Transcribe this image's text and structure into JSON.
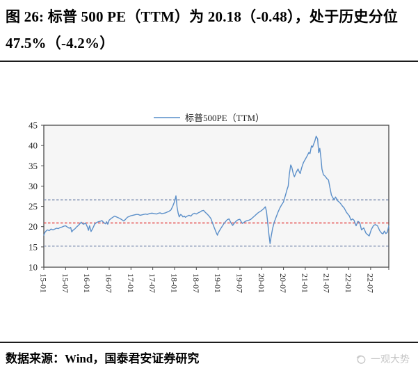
{
  "figure": {
    "title": "图 26: 标普 500 PE（TTM）为 20.18（-0.48），处于历史分位 47.5%（-4.2%）",
    "source": "数据来源：Wind，国泰君安证券研究",
    "watermark": "一观大势"
  },
  "chart_data": {
    "type": "line",
    "title": "",
    "legend": [
      "标普500PE（TTM）"
    ],
    "legend_position": "top-center",
    "legend_line_color": "#7fa9d6",
    "grid": false,
    "plot_bg": "#f6f6f6",
    "border_color": "#4a4a4a",
    "axis_text_color": "#222222",
    "ylim": [
      10,
      45
    ],
    "y_ticks": [
      10,
      15,
      20,
      25,
      30,
      35,
      40,
      45
    ],
    "x_range_months": [
      0,
      95
    ],
    "x_tick_step_months": 6,
    "x_ticks": [
      "15-01",
      "15-07",
      "16-01",
      "16-07",
      "17-01",
      "17-07",
      "18-01",
      "18-07",
      "19-01",
      "19-07",
      "20-01",
      "20-07",
      "21-01",
      "21-07",
      "22-01",
      "22-07"
    ],
    "current_value": 20.18,
    "current_change": -0.48,
    "percentile": "47.5%",
    "percentile_change": "-4.2%",
    "reference_lines": [
      {
        "name": "mean",
        "value": 20.9,
        "color": "#e23b3b"
      },
      {
        "name": "plus-1-std",
        "value": 26.6,
        "color": "#8090b2"
      },
      {
        "name": "minus-1-std",
        "value": 15.2,
        "color": "#8090b2"
      }
    ],
    "series": [
      {
        "name": "标普500PE（TTM）",
        "color": "#5b8fc9",
        "points": [
          [
            0,
            17.9
          ],
          [
            0.3,
            18.6
          ],
          [
            0.7,
            19.0
          ],
          [
            1,
            19.2
          ],
          [
            1.5,
            19.0
          ],
          [
            2,
            19.4
          ],
          [
            2.5,
            19.2
          ],
          [
            3,
            19.4
          ],
          [
            3.5,
            19.6
          ],
          [
            4,
            19.5
          ],
          [
            4.5,
            19.8
          ],
          [
            5,
            19.9
          ],
          [
            5.5,
            20.1
          ],
          [
            6,
            20.2
          ],
          [
            6.5,
            19.9
          ],
          [
            7,
            19.6
          ],
          [
            7.4,
            19.8
          ],
          [
            7.7,
            18.7
          ],
          [
            8,
            19.1
          ],
          [
            8.5,
            19.4
          ],
          [
            9,
            19.9
          ],
          [
            9.5,
            20.3
          ],
          [
            10,
            20.8
          ],
          [
            10.3,
            21.1
          ],
          [
            10.7,
            20.7
          ],
          [
            11,
            20.6
          ],
          [
            11.5,
            20.9
          ],
          [
            12,
            19.9
          ],
          [
            12.3,
            19.1
          ],
          [
            12.6,
            20.2
          ],
          [
            13,
            18.8
          ],
          [
            13.5,
            19.6
          ],
          [
            14,
            20.6
          ],
          [
            14.5,
            21.0
          ],
          [
            15,
            21.2
          ],
          [
            15.5,
            21.3
          ],
          [
            16,
            21.5
          ],
          [
            16.5,
            21.0
          ],
          [
            17,
            20.7
          ],
          [
            17.3,
            21.2
          ],
          [
            17.6,
            20.6
          ],
          [
            18,
            21.6
          ],
          [
            18.5,
            22.0
          ],
          [
            19,
            22.3
          ],
          [
            19.5,
            22.6
          ],
          [
            20,
            22.4
          ],
          [
            20.5,
            22.2
          ],
          [
            21,
            22.0
          ],
          [
            21.5,
            21.7
          ],
          [
            22,
            21.4
          ],
          [
            22.5,
            21.8
          ],
          [
            23,
            22.3
          ],
          [
            23.5,
            22.5
          ],
          [
            24,
            22.7
          ],
          [
            24.5,
            22.8
          ],
          [
            25,
            22.9
          ],
          [
            25.5,
            23.0
          ],
          [
            26,
            23.0
          ],
          [
            26.5,
            22.8
          ],
          [
            27,
            22.9
          ],
          [
            27.5,
            23.0
          ],
          [
            28,
            23.1
          ],
          [
            28.5,
            23.0
          ],
          [
            29,
            23.2
          ],
          [
            29.5,
            23.3
          ],
          [
            30,
            23.3
          ],
          [
            30.5,
            23.2
          ],
          [
            31,
            23.1
          ],
          [
            31.5,
            23.3
          ],
          [
            32,
            23.4
          ],
          [
            32.5,
            23.2
          ],
          [
            33,
            23.3
          ],
          [
            33.5,
            23.4
          ],
          [
            34,
            23.6
          ],
          [
            34.5,
            23.8
          ],
          [
            35,
            24.1
          ],
          [
            35.5,
            25.0
          ],
          [
            36,
            26.2
          ],
          [
            36.4,
            27.6
          ],
          [
            36.7,
            24.8
          ],
          [
            37,
            23.3
          ],
          [
            37.3,
            22.4
          ],
          [
            37.7,
            23.0
          ],
          [
            38,
            22.8
          ],
          [
            38.3,
            22.4
          ],
          [
            38.7,
            22.6
          ],
          [
            39,
            22.3
          ],
          [
            39.5,
            22.6
          ],
          [
            40,
            22.8
          ],
          [
            40.5,
            22.6
          ],
          [
            41,
            23.1
          ],
          [
            41.5,
            23.3
          ],
          [
            42,
            23.1
          ],
          [
            42.5,
            23.4
          ],
          [
            43,
            23.6
          ],
          [
            43.5,
            23.9
          ],
          [
            44,
            24.0
          ],
          [
            44.5,
            23.5
          ],
          [
            45,
            23.1
          ],
          [
            45.5,
            22.6
          ],
          [
            46,
            22.0
          ],
          [
            46.5,
            20.8
          ],
          [
            47,
            19.6
          ],
          [
            47.5,
            18.5
          ],
          [
            47.8,
            17.9
          ],
          [
            48,
            18.4
          ],
          [
            48.3,
            18.9
          ],
          [
            48.7,
            19.5
          ],
          [
            49,
            19.9
          ],
          [
            49.5,
            20.6
          ],
          [
            50,
            21.2
          ],
          [
            50.5,
            21.7
          ],
          [
            51,
            21.9
          ],
          [
            51.5,
            21.0
          ],
          [
            52,
            20.3
          ],
          [
            52.5,
            20.9
          ],
          [
            53,
            21.4
          ],
          [
            53.5,
            21.7
          ],
          [
            54,
            21.8
          ],
          [
            54.3,
            21.3
          ],
          [
            54.7,
            20.8
          ],
          [
            55,
            21.0
          ],
          [
            55.5,
            21.3
          ],
          [
            56,
            21.5
          ],
          [
            56.5,
            21.6
          ],
          [
            57,
            21.8
          ],
          [
            57.5,
            22.2
          ],
          [
            58,
            22.6
          ],
          [
            58.5,
            23.0
          ],
          [
            59,
            23.4
          ],
          [
            59.5,
            23.7
          ],
          [
            60,
            24.0
          ],
          [
            60.5,
            24.4
          ],
          [
            61,
            24.9
          ],
          [
            61.3,
            23.8
          ],
          [
            61.6,
            21.5
          ],
          [
            62,
            18.0
          ],
          [
            62.3,
            15.8
          ],
          [
            62.6,
            17.5
          ],
          [
            63,
            19.5
          ],
          [
            63.5,
            21.2
          ],
          [
            64,
            22.4
          ],
          [
            64.5,
            23.6
          ],
          [
            65,
            24.6
          ],
          [
            65.5,
            25.4
          ],
          [
            66,
            26.1
          ],
          [
            66.5,
            27.6
          ],
          [
            67,
            29.2
          ],
          [
            67.3,
            30.0
          ],
          [
            67.6,
            32.8
          ],
          [
            68,
            35.2
          ],
          [
            68.3,
            34.6
          ],
          [
            68.7,
            33.0
          ],
          [
            69,
            32.3
          ],
          [
            69.5,
            33.4
          ],
          [
            70,
            34.2
          ],
          [
            70.3,
            33.6
          ],
          [
            70.6,
            33.1
          ],
          [
            71,
            34.5
          ],
          [
            71.5,
            35.8
          ],
          [
            72,
            36.6
          ],
          [
            72.5,
            37.4
          ],
          [
            73,
            38.3
          ],
          [
            73.3,
            38.0
          ],
          [
            73.7,
            39.9
          ],
          [
            74,
            39.6
          ],
          [
            74.3,
            40.3
          ],
          [
            74.6,
            41.0
          ],
          [
            75,
            42.3
          ],
          [
            75.4,
            41.6
          ],
          [
            75.7,
            38.2
          ],
          [
            76,
            39.3
          ],
          [
            76.3,
            37.0
          ],
          [
            76.6,
            34.2
          ],
          [
            77,
            32.8
          ],
          [
            77.5,
            32.4
          ],
          [
            78,
            31.8
          ],
          [
            78.4,
            31.5
          ],
          [
            78.8,
            29.6
          ],
          [
            79.2,
            27.8
          ],
          [
            79.6,
            27.1
          ],
          [
            80,
            26.6
          ],
          [
            80.3,
            27.3
          ],
          [
            80.7,
            26.8
          ],
          [
            81,
            26.3
          ],
          [
            81.4,
            26.0
          ],
          [
            81.8,
            25.6
          ],
          [
            82.2,
            25.1
          ],
          [
            82.7,
            24.6
          ],
          [
            83.3,
            23.6
          ],
          [
            83.7,
            23.1
          ],
          [
            84.1,
            22.7
          ],
          [
            84.6,
            21.6
          ],
          [
            85,
            21.9
          ],
          [
            85.4,
            21.6
          ],
          [
            86,
            20.2
          ],
          [
            86.5,
            21.3
          ],
          [
            87,
            21.0
          ],
          [
            87.5,
            19.2
          ],
          [
            88.1,
            19.7
          ],
          [
            88.7,
            18.4
          ],
          [
            89.2,
            18.0
          ],
          [
            89.6,
            17.7
          ],
          [
            90.2,
            19.3
          ],
          [
            90.8,
            20.3
          ],
          [
            91.3,
            20.5
          ],
          [
            91.9,
            20.2
          ],
          [
            92.5,
            19.0
          ],
          [
            93,
            18.4
          ],
          [
            93.4,
            18.2
          ],
          [
            93.8,
            18.9
          ],
          [
            94.2,
            18.3
          ],
          [
            94.6,
            18.6
          ],
          [
            95,
            20.18
          ]
        ]
      }
    ]
  }
}
